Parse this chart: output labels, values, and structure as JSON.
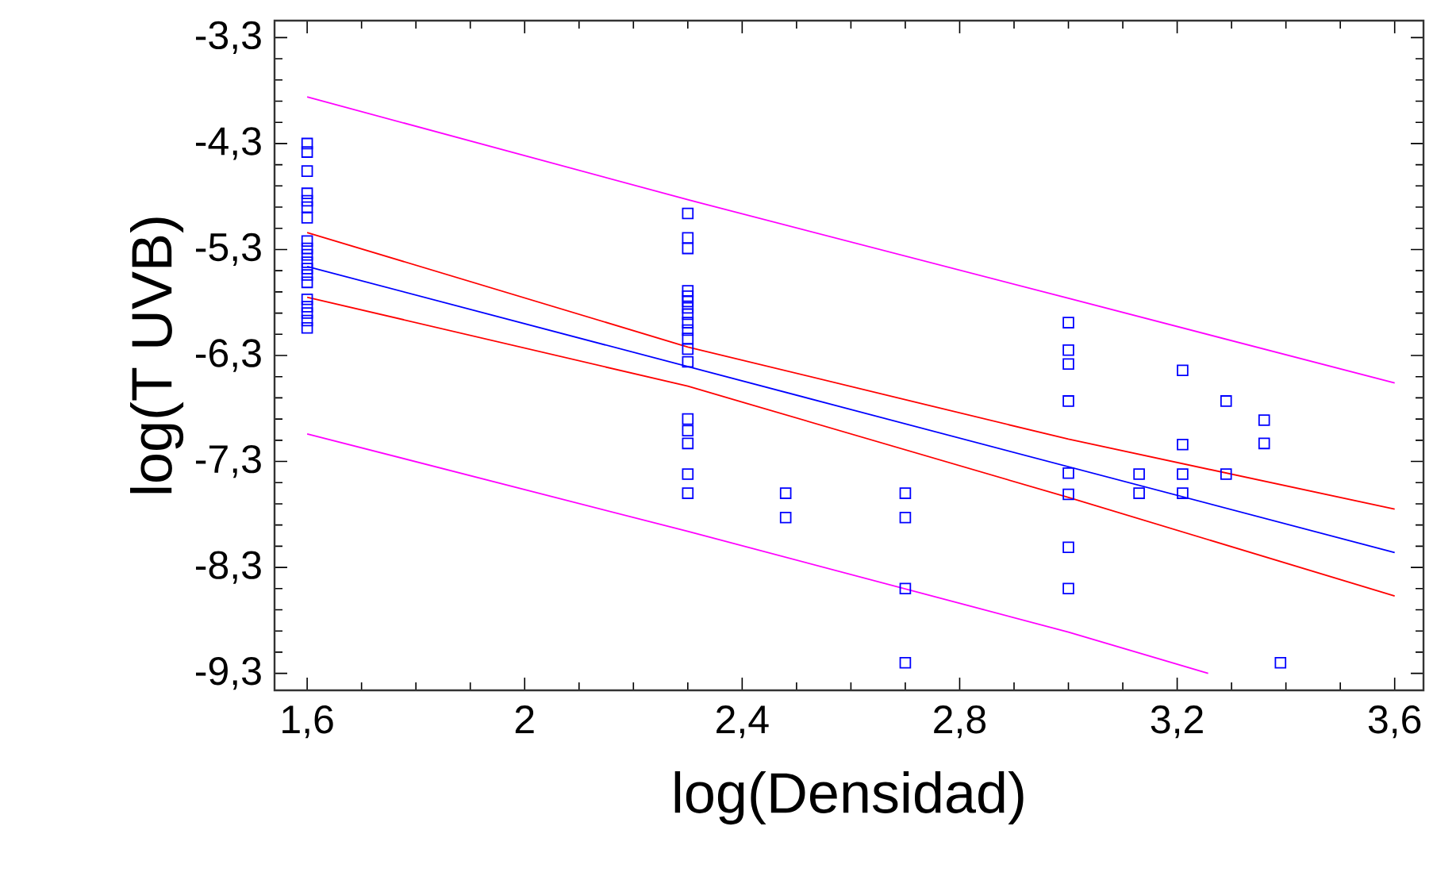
{
  "chart_data": {
    "type": "scatter",
    "xlabel": "log(Densidad)",
    "ylabel": "log(T UVB)",
    "xlim": [
      1.54,
      3.653
    ],
    "ylim": [
      -9.46,
      -3.14
    ],
    "xticks": [
      {
        "value": 1.6,
        "label": "1,6"
      },
      2,
      {
        "value": 2.4,
        "label": "2,4"
      },
      {
        "value": 2.8,
        "label": "2,8"
      },
      {
        "value": 3.2,
        "label": "3,2"
      },
      {
        "value": 3.6,
        "label": "3,6"
      }
    ],
    "yticks": [
      {
        "value": -3.3,
        "label": "-3,3"
      },
      {
        "value": -4.3,
        "label": "-4,3"
      },
      {
        "value": -5.3,
        "label": "-5,3"
      },
      {
        "value": -6.3,
        "label": "-6,3"
      },
      {
        "value": -7.3,
        "label": "-7,3"
      },
      {
        "value": -8.3,
        "label": "-8,3"
      },
      {
        "value": -9.3,
        "label": "-9,3"
      }
    ],
    "grid": false,
    "legend": false,
    "series": [
      {
        "marker": "square",
        "color": "#0000ff",
        "x": [
          1.6,
          1.6,
          1.6,
          1.6,
          1.6,
          1.6,
          1.6,
          1.6,
          1.6,
          1.6,
          1.6,
          1.6,
          1.6,
          1.6,
          1.6,
          1.6,
          1.6,
          1.6,
          1.6,
          2.3,
          2.3,
          2.3,
          2.3,
          2.3,
          2.3,
          2.3,
          2.3,
          2.3,
          2.3,
          2.3,
          2.3,
          2.3,
          2.3,
          2.3,
          2.3,
          2.3,
          2.3,
          2.48,
          2.48,
          2.7,
          2.7,
          2.7,
          2.7,
          3.0,
          3.0,
          3.0,
          3.0,
          3.0,
          3.0,
          3.0,
          3.0,
          3.13,
          3.13,
          3.21,
          3.21,
          3.21,
          3.21,
          3.29,
          3.29,
          3.36,
          3.36,
          3.39
        ],
        "values": [
          -4.3,
          -4.38,
          -4.56,
          -4.77,
          -4.84,
          -4.9,
          -5.0,
          -5.22,
          -5.29,
          -5.35,
          -5.42,
          -5.48,
          -5.54,
          -5.61,
          -5.77,
          -5.84,
          -5.9,
          -5.97,
          -6.04,
          -4.96,
          -5.19,
          -5.29,
          -5.69,
          -5.74,
          -5.79,
          -5.85,
          -5.91,
          -5.99,
          -6.06,
          -6.14,
          -6.24,
          -6.36,
          -6.9,
          -7.01,
          -7.13,
          -7.42,
          -7.6,
          -7.6,
          -7.83,
          -7.6,
          -7.83,
          -8.5,
          -9.2,
          -5.99,
          -6.25,
          -6.38,
          -6.73,
          -7.41,
          -7.61,
          -8.11,
          -8.5,
          -7.42,
          -7.6,
          -6.44,
          -7.14,
          -7.42,
          -7.6,
          -6.73,
          -7.42,
          -6.91,
          -7.13,
          -9.2
        ]
      },
      {
        "type": "line",
        "marker": "none",
        "color": "#0000ff",
        "x": [
          1.6,
          3.6
        ],
        "values": [
          -5.46,
          -8.16
        ]
      },
      {
        "type": "line",
        "marker": "none",
        "color": "#ff0000",
        "x": [
          1.6,
          2.3,
          3.0,
          3.6
        ],
        "values": [
          -5.14,
          -6.22,
          -7.09,
          -7.75
        ]
      },
      {
        "type": "line",
        "marker": "none",
        "color": "#ff0000",
        "x": [
          1.6,
          2.3,
          3.0,
          3.6
        ],
        "values": [
          -5.75,
          -6.59,
          -7.64,
          -8.57
        ]
      },
      {
        "type": "line",
        "marker": "none",
        "color": "#ff00ff",
        "x": [
          1.6,
          2.3,
          3.0,
          3.6
        ],
        "values": [
          -3.86,
          -4.83,
          -5.76,
          -6.56
        ]
      },
      {
        "type": "line",
        "marker": "none",
        "color": "#ff00ff",
        "x": [
          1.6,
          2.3,
          3.0,
          3.257
        ],
        "values": [
          -7.04,
          -7.96,
          -8.91,
          -9.3
        ]
      }
    ]
  }
}
